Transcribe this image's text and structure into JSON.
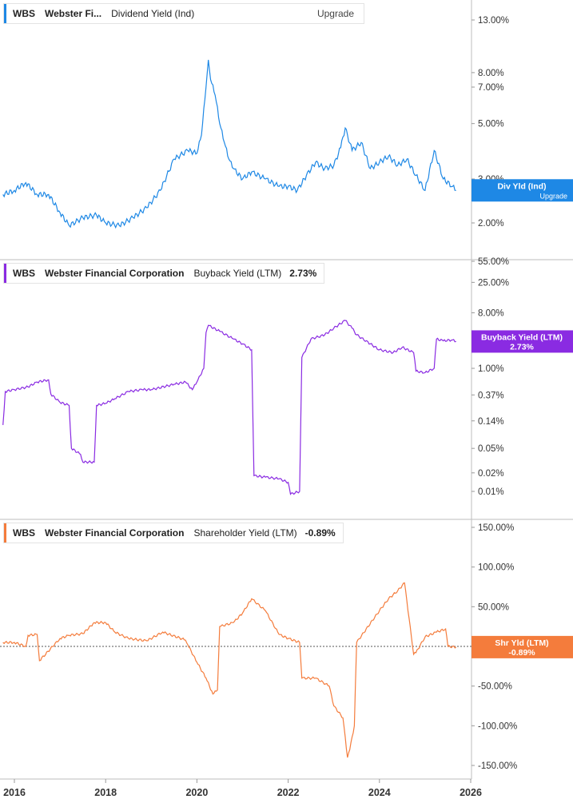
{
  "panels": [
    {
      "ticker": "WBS",
      "company": "Webster Fi...",
      "metric": "Dividend Yield (Ind)",
      "value": "",
      "upgrade": "Upgrade",
      "flag_label": "Div Yld (Ind)",
      "flag_sub": "Upgrade",
      "flag_value": "",
      "color": "#1e88e5"
    },
    {
      "ticker": "WBS",
      "company": "Webster Financial Corporation",
      "metric": "Buyback Yield (LTM)",
      "value": "2.73%",
      "upgrade": "",
      "flag_label": "Buyback Yield (LTM)",
      "flag_sub": "",
      "flag_value": "2.73%",
      "color": "#8a2be2"
    },
    {
      "ticker": "WBS",
      "company": "Webster Financial Corporation",
      "metric": "Shareholder Yield (LTM)",
      "value": "-0.89%",
      "upgrade": "",
      "flag_label": "Shr Yld (LTM)",
      "flag_sub": "",
      "flag_value": "-0.89%",
      "color": "#f47c3c"
    }
  ],
  "chart_data": [
    {
      "type": "line",
      "title": "Dividend Yield (Ind)",
      "y_scale": "log",
      "y_ticks": [
        {
          "value": 13,
          "label": "13.00%"
        },
        {
          "value": 8,
          "label": "8.00%"
        },
        {
          "value": 7,
          "label": "7.00%"
        },
        {
          "value": 5,
          "label": "5.00%"
        },
        {
          "value": 3,
          "label": "3.00%"
        },
        {
          "value": 2,
          "label": "2.00%"
        }
      ],
      "ylim": [
        1.7,
        15
      ],
      "series": [
        {
          "name": "Div Yld (Ind)",
          "color": "#1e88e5",
          "x": [
            2015.75,
            2016.0,
            2016.25,
            2016.5,
            2016.75,
            2017.0,
            2017.2,
            2017.5,
            2017.8,
            2018.0,
            2018.3,
            2018.6,
            2018.9,
            2019.2,
            2019.5,
            2019.8,
            2020.0,
            2020.1,
            2020.2,
            2020.25,
            2020.3,
            2020.4,
            2020.5,
            2020.6,
            2020.7,
            2020.8,
            2021.0,
            2021.2,
            2021.5,
            2021.8,
            2022.0,
            2022.2,
            2022.4,
            2022.6,
            2022.8,
            2023.0,
            2023.15,
            2023.25,
            2023.4,
            2023.6,
            2023.8,
            2024.0,
            2024.2,
            2024.4,
            2024.6,
            2024.8,
            2025.0,
            2025.2,
            2025.4,
            2025.6,
            2025.68
          ],
          "y": [
            2.6,
            2.7,
            2.9,
            2.6,
            2.6,
            2.2,
            1.95,
            2.1,
            2.15,
            2.0,
            1.95,
            2.1,
            2.3,
            2.7,
            3.6,
            3.9,
            3.8,
            4.5,
            7.0,
            9.0,
            7.5,
            6.5,
            5.0,
            4.2,
            3.6,
            3.3,
            3.0,
            3.2,
            3.0,
            2.8,
            2.8,
            2.7,
            3.1,
            3.5,
            3.3,
            3.4,
            4.0,
            4.8,
            3.9,
            4.2,
            3.3,
            3.5,
            3.7,
            3.4,
            3.6,
            3.1,
            2.7,
            3.9,
            3.0,
            2.8,
            2.7
          ]
        }
      ]
    },
    {
      "type": "line",
      "title": "Buyback Yield (LTM)",
      "y_scale": "log",
      "y_ticks": [
        {
          "value": 55,
          "label": "55.00%"
        },
        {
          "value": 25,
          "label": "25.00%"
        },
        {
          "value": 8,
          "label": "8.00%"
        },
        {
          "value": 1,
          "label": "1.00%"
        },
        {
          "value": 0.37,
          "label": "0.37%"
        },
        {
          "value": 0.14,
          "label": "0.14%"
        },
        {
          "value": 0.05,
          "label": "0.05%"
        },
        {
          "value": 0.02,
          "label": "0.02%"
        },
        {
          "value": 0.01,
          "label": "0.01%"
        }
      ],
      "ylim": [
        0.008,
        65
      ],
      "series": [
        {
          "name": "Buyback Yield (LTM)",
          "color": "#8a2be2",
          "x": [
            2015.75,
            2015.8,
            2016.0,
            2016.3,
            2016.5,
            2016.75,
            2016.8,
            2017.0,
            2017.2,
            2017.25,
            2017.45,
            2017.5,
            2017.75,
            2017.8,
            2018.0,
            2018.2,
            2018.5,
            2018.8,
            2019.0,
            2019.5,
            2019.75,
            2019.9,
            2020.0,
            2020.15,
            2020.2,
            2020.25,
            2020.5,
            2020.8,
            2021.0,
            2021.2,
            2021.25,
            2021.5,
            2021.8,
            2022.0,
            2022.05,
            2022.25,
            2022.3,
            2022.5,
            2022.8,
            2023.0,
            2023.25,
            2023.4,
            2023.5,
            2023.8,
            2024.0,
            2024.3,
            2024.5,
            2024.75,
            2024.8,
            2025.0,
            2025.2,
            2025.25,
            2025.4,
            2025.6,
            2025.68
          ],
          "y": [
            0.12,
            0.42,
            0.45,
            0.5,
            0.6,
            0.65,
            0.38,
            0.28,
            0.25,
            0.05,
            0.04,
            0.03,
            0.03,
            0.25,
            0.27,
            0.32,
            0.42,
            0.45,
            0.45,
            0.55,
            0.6,
            0.45,
            0.6,
            1.0,
            3.8,
            5.0,
            4.0,
            3.0,
            2.5,
            2.0,
            0.018,
            0.017,
            0.016,
            0.014,
            0.009,
            0.01,
            1.5,
            3.0,
            3.5,
            4.5,
            6.0,
            4.5,
            3.5,
            2.5,
            2.0,
            1.8,
            2.2,
            1.8,
            0.9,
            0.85,
            1.0,
            3.0,
            2.8,
            2.9,
            2.73
          ]
        }
      ]
    },
    {
      "type": "line",
      "title": "Shareholder Yield (LTM)",
      "y_scale": "linear",
      "y_ticks": [
        {
          "value": 150,
          "label": "150.00%"
        },
        {
          "value": 100,
          "label": "100.00%"
        },
        {
          "value": 50,
          "label": "50.00%"
        },
        {
          "value": 0,
          "label": "0.00%"
        },
        {
          "value": -50,
          "label": "-50.00%"
        },
        {
          "value": -100,
          "label": "-100.00%"
        },
        {
          "value": -150,
          "label": "-150.00%"
        }
      ],
      "ylim": [
        -160,
        160
      ],
      "series": [
        {
          "name": "Shr Yld (LTM)",
          "color": "#f47c3c",
          "x": [
            2015.75,
            2016.0,
            2016.25,
            2016.3,
            2016.5,
            2016.55,
            2017.0,
            2017.2,
            2017.5,
            2017.75,
            2018.0,
            2018.2,
            2018.5,
            2018.9,
            2019.25,
            2019.75,
            2019.8,
            2020.0,
            2020.2,
            2020.35,
            2020.45,
            2020.5,
            2020.8,
            2021.0,
            2021.2,
            2021.5,
            2021.8,
            2022.0,
            2022.25,
            2022.3,
            2022.6,
            2022.9,
            2023.0,
            2023.2,
            2023.3,
            2023.35,
            2023.45,
            2023.5,
            2024.0,
            2024.2,
            2024.4,
            2024.55,
            2024.75,
            2024.8,
            2025.0,
            2025.25,
            2025.45,
            2025.5,
            2025.68
          ],
          "y": [
            5,
            5,
            0,
            14,
            15,
            -18,
            10,
            14,
            16,
            30,
            30,
            18,
            10,
            7,
            18,
            8,
            2,
            -20,
            -40,
            -60,
            -55,
            25,
            30,
            42,
            60,
            45,
            15,
            10,
            5,
            -40,
            -40,
            -50,
            -75,
            -90,
            -140,
            -130,
            -100,
            5,
            45,
            60,
            70,
            80,
            -10,
            -8,
            12,
            18,
            22,
            0,
            -0.89
          ]
        }
      ]
    }
  ],
  "x_axis": {
    "labels": [
      "2016",
      "2018",
      "2020",
      "2022",
      "2024",
      "2026"
    ],
    "values": [
      2016,
      2018,
      2020,
      2022,
      2024,
      2026
    ],
    "range": [
      2015.75,
      2026
    ]
  }
}
